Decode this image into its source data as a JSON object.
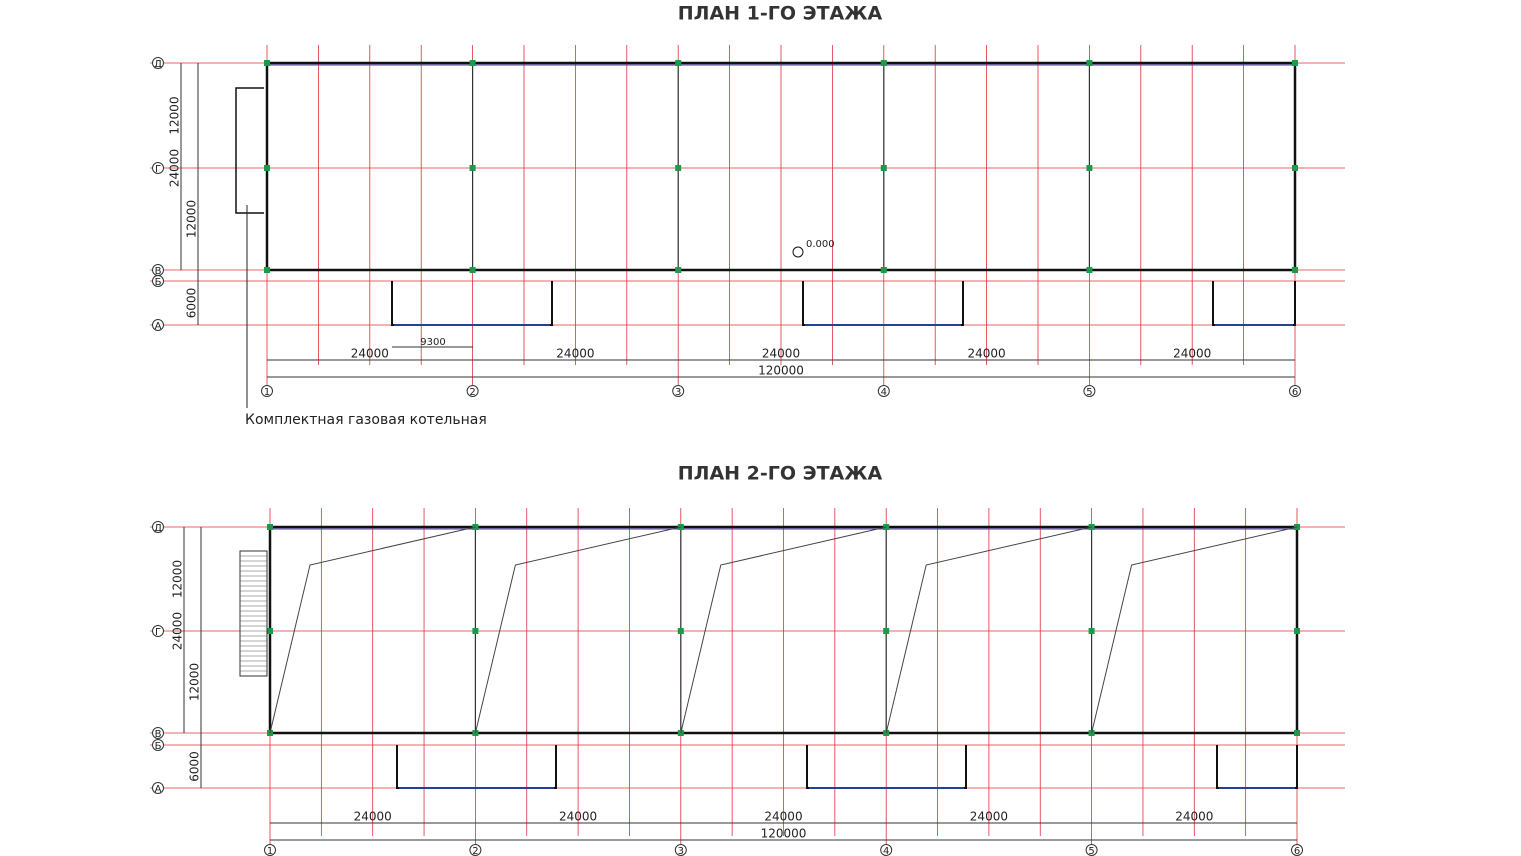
{
  "plans": [
    {
      "title": "ПЛАН 1-ГО ЭТАЖА",
      "rows": [
        "Д",
        "Г",
        "В",
        "Б",
        "А"
      ],
      "row_dims": [
        "12000",
        "24000",
        "12000",
        "6000"
      ],
      "bay_dims": [
        "24000",
        "24000",
        "24000",
        "24000",
        "24000"
      ],
      "total_dim": "120000",
      "columns": [
        "1",
        "2",
        "3",
        "4",
        "5",
        "6"
      ],
      "annex_dim": "9300",
      "level": "0.000",
      "note": "Комплектная газовая котельная"
    },
    {
      "title": "ПЛАН 2-ГО ЭТАЖА",
      "rows": [
        "Д",
        "Г",
        "В",
        "Б",
        "А"
      ],
      "row_dims": [
        "12000",
        "24000",
        "12000",
        "6000"
      ],
      "bay_dims": [
        "24000",
        "24000",
        "24000",
        "24000",
        "24000"
      ],
      "total_dim": "120000",
      "columns": [
        "1",
        "2",
        "3",
        "4",
        "5",
        "6"
      ]
    }
  ]
}
